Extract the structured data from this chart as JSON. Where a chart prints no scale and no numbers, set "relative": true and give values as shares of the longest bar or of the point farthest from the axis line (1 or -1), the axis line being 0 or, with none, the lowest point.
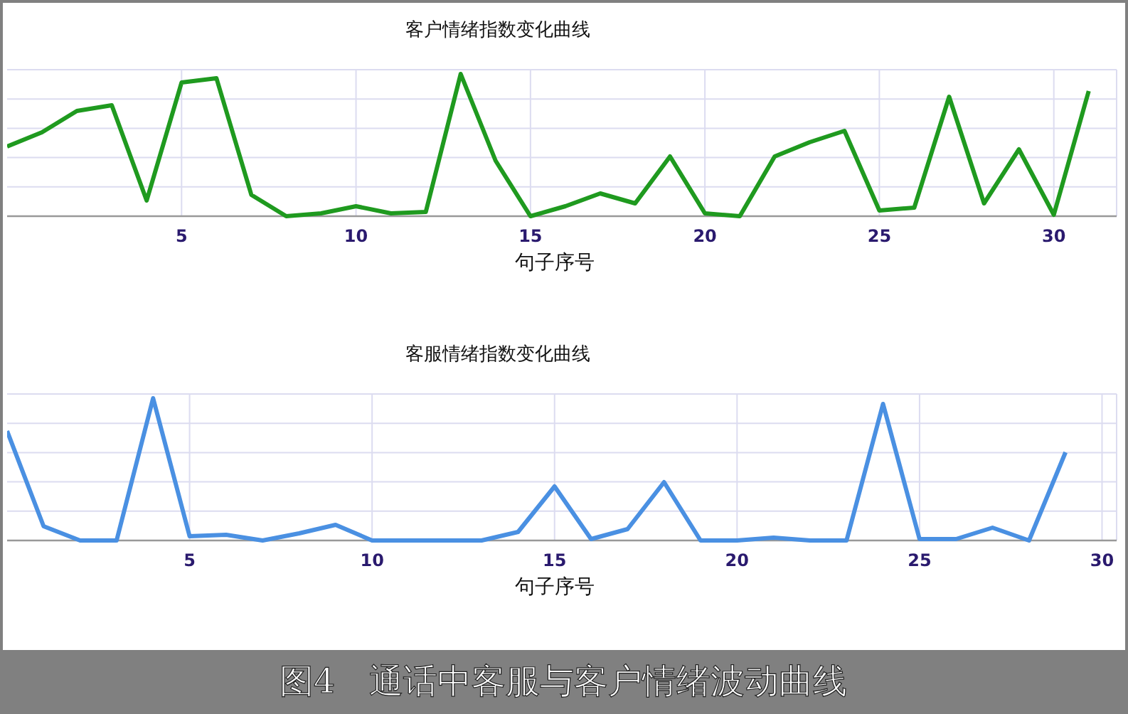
{
  "chart_data": [
    {
      "type": "line",
      "title": "客户情绪指数变化曲线",
      "xlabel": "句子序号",
      "relative": true,
      "grid": true,
      "xlim": [
        0,
        31.8
      ],
      "xticks": [
        5,
        10,
        15,
        20,
        25,
        30
      ],
      "x": [
        0,
        1,
        2,
        3,
        4,
        5,
        6,
        7,
        8,
        9,
        10,
        11,
        12,
        13,
        14,
        15,
        16,
        17,
        18,
        19,
        20,
        21,
        22,
        23,
        24,
        25,
        26,
        27,
        28,
        29,
        30,
        31
      ],
      "series": [
        {
          "color": "#1f9a1f",
          "values": [
            0.49,
            0.59,
            0.74,
            0.78,
            0.11,
            0.94,
            0.97,
            0.15,
            0,
            0.02,
            0.07,
            0.02,
            0.03,
            1.0,
            0.39,
            0,
            0.07,
            0.16,
            0.09,
            0.42,
            0.02,
            0,
            0.42,
            0.52,
            0.6,
            0.04,
            0.06,
            0.84,
            0.09,
            0.47,
            0.01,
            0.88
          ]
        }
      ]
    },
    {
      "type": "line",
      "title": "客服情绪指数变化曲线",
      "xlabel": "句子序号",
      "relative": true,
      "grid": true,
      "xlim": [
        0,
        30.4
      ],
      "xticks": [
        5,
        10,
        15,
        20,
        25,
        30
      ],
      "x": [
        0,
        1,
        2,
        3,
        4,
        5,
        6,
        7,
        8,
        9,
        10,
        11,
        12,
        13,
        14,
        15,
        16,
        17,
        18,
        19,
        20,
        21,
        22,
        23,
        24,
        25,
        26,
        27,
        28,
        29
      ],
      "series": [
        {
          "color": "#4a90e2",
          "values": [
            0.77,
            0.1,
            0,
            0,
            1.0,
            0.03,
            0.04,
            0,
            0.05,
            0.11,
            0,
            0,
            0,
            0,
            0.06,
            0.38,
            0.01,
            0.08,
            0.41,
            0,
            0,
            0.02,
            0,
            0,
            0.96,
            0.01,
            0.01,
            0.09,
            0,
            0.62
          ]
        }
      ],
      "annotations": [
        "图4　通话中客服与客户情绪波动曲线"
      ]
    }
  ]
}
